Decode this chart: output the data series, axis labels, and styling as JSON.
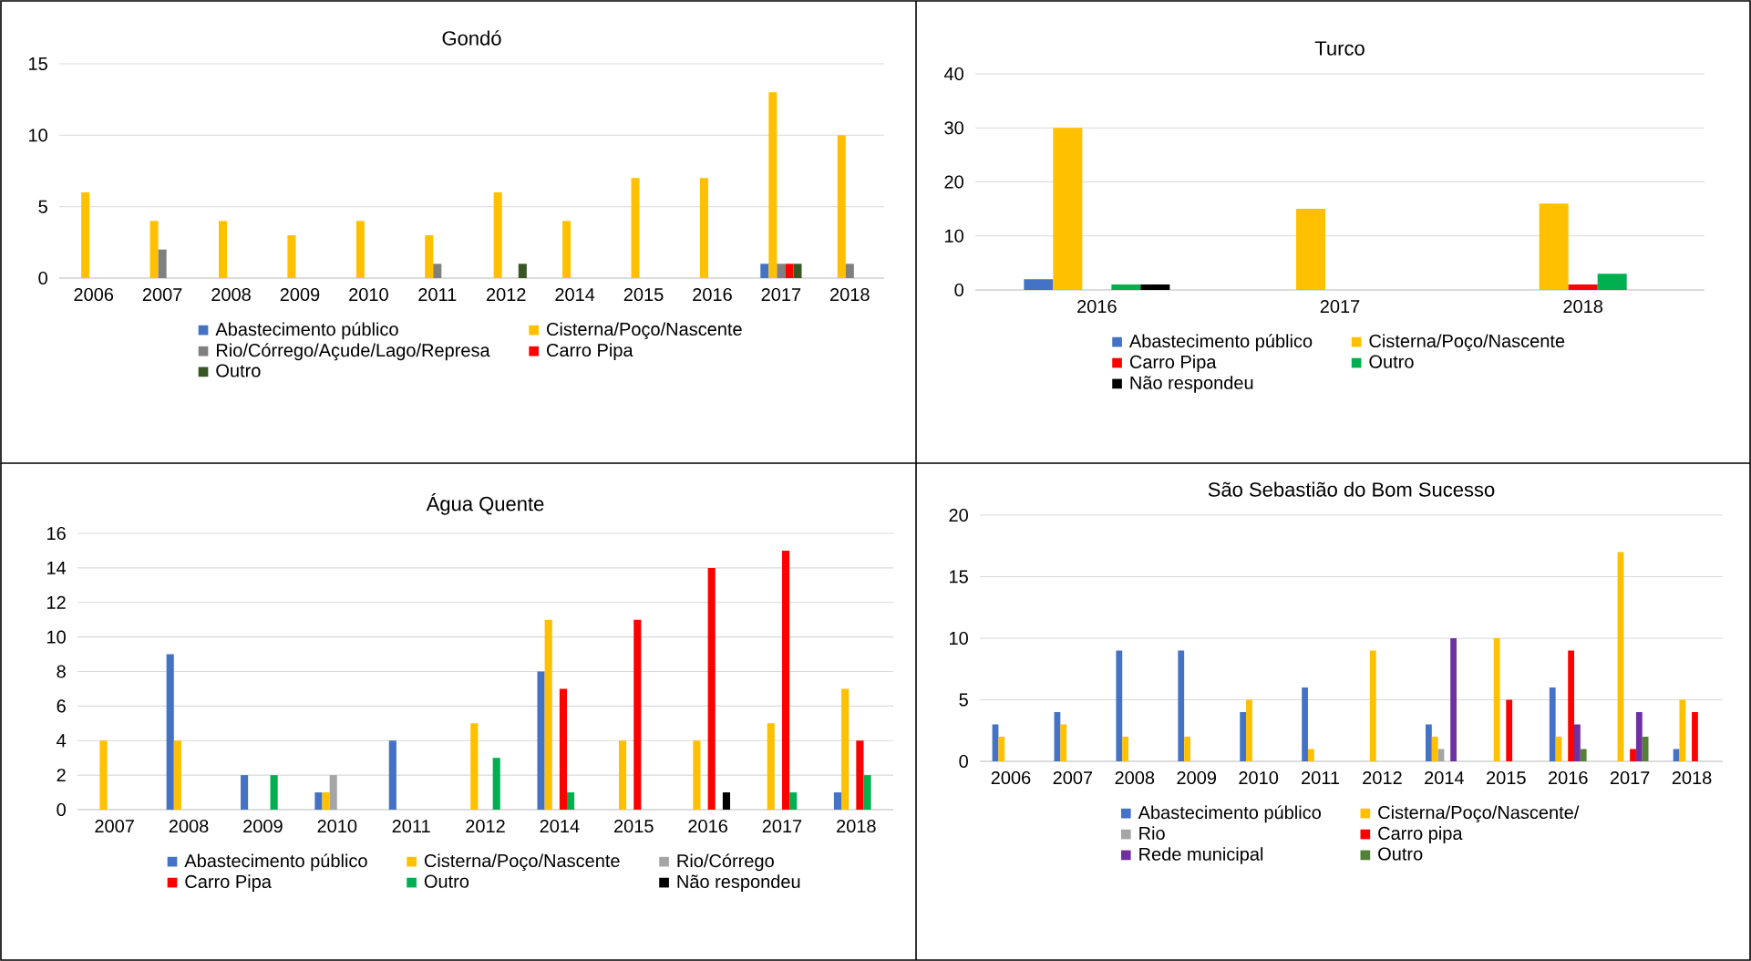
{
  "chart_data": [
    {
      "type": "bar",
      "title": "Gondó",
      "categories": [
        "2006",
        "2007",
        "2008",
        "2009",
        "2010",
        "2011",
        "2012",
        "2014",
        "2015",
        "2016",
        "2017",
        "2018"
      ],
      "ylim": [
        0,
        15
      ],
      "yticks": [
        0,
        5,
        10,
        15
      ],
      "grid": "y",
      "legend": "bottom",
      "series": [
        {
          "name": "Abastecimento público",
          "color": "#4472c4",
          "values": [
            null,
            null,
            null,
            null,
            null,
            null,
            null,
            null,
            null,
            null,
            1,
            null
          ]
        },
        {
          "name": "Cisterna/Poço/Nascente",
          "color": "#ffc000",
          "values": [
            6,
            4,
            4,
            3,
            4,
            3,
            6,
            4,
            7,
            7,
            13,
            10
          ]
        },
        {
          "name": "Rio/Córrego/Açude/Lago/Represa",
          "color": "#808080",
          "values": [
            null,
            2,
            null,
            null,
            null,
            1,
            null,
            null,
            null,
            null,
            1,
            1
          ]
        },
        {
          "name": "Carro Pipa",
          "color": "#ff0000",
          "values": [
            null,
            null,
            null,
            null,
            null,
            null,
            null,
            null,
            null,
            null,
            1,
            null
          ]
        },
        {
          "name": "Outro",
          "color": "#375623",
          "values": [
            null,
            null,
            null,
            null,
            null,
            null,
            1,
            null,
            null,
            null,
            1,
            null
          ]
        }
      ]
    },
    {
      "type": "bar",
      "title": "Turco",
      "categories": [
        "2016",
        "2017",
        "2018"
      ],
      "ylim": [
        0,
        40
      ],
      "yticks": [
        0,
        10,
        20,
        30,
        40
      ],
      "grid": "y",
      "legend": "bottom",
      "series": [
        {
          "name": "Abastecimento público",
          "color": "#4472c4",
          "values": [
            2,
            null,
            null
          ]
        },
        {
          "name": "Cisterna/Poço/Nascente",
          "color": "#ffc000",
          "values": [
            30,
            15,
            16
          ]
        },
        {
          "name": "Carro Pipa",
          "color": "#ff0000",
          "values": [
            null,
            null,
            1
          ]
        },
        {
          "name": "Outro",
          "color": "#00b050",
          "values": [
            1,
            null,
            3
          ]
        },
        {
          "name": "Não respondeu",
          "color": "#000000",
          "values": [
            1,
            null,
            null
          ]
        }
      ]
    },
    {
      "type": "bar",
      "title": "Água Quente",
      "categories": [
        "2007",
        "2008",
        "2009",
        "2010",
        "2011",
        "2012",
        "2014",
        "2015",
        "2016",
        "2017",
        "2018"
      ],
      "ylim": [
        0,
        16
      ],
      "yticks": [
        0,
        2,
        4,
        6,
        8,
        10,
        12,
        14,
        16
      ],
      "grid": "y",
      "legend": "bottom",
      "series": [
        {
          "name": "Abastecimento público",
          "color": "#4472c4",
          "values": [
            null,
            9,
            2,
            1,
            4,
            null,
            8,
            null,
            null,
            null,
            1
          ]
        },
        {
          "name": "Cisterna/Poço/Nascente",
          "color": "#ffc000",
          "values": [
            4,
            4,
            null,
            1,
            null,
            5,
            11,
            4,
            4,
            5,
            7
          ]
        },
        {
          "name": "Rio/Córrego",
          "color": "#a5a5a5",
          "values": [
            null,
            null,
            null,
            2,
            null,
            null,
            null,
            null,
            null,
            null,
            null
          ]
        },
        {
          "name": "Carro Pipa",
          "color": "#ff0000",
          "values": [
            null,
            null,
            null,
            null,
            null,
            null,
            7,
            11,
            14,
            15,
            4
          ]
        },
        {
          "name": "Outro",
          "color": "#00b050",
          "values": [
            null,
            null,
            2,
            null,
            null,
            3,
            1,
            null,
            null,
            1,
            2
          ]
        },
        {
          "name": "Não respondeu",
          "color": "#000000",
          "values": [
            null,
            null,
            null,
            null,
            null,
            null,
            null,
            null,
            1,
            null,
            null
          ]
        }
      ]
    },
    {
      "type": "bar",
      "title": "São Sebastião do Bom Sucesso",
      "categories": [
        "2006",
        "2007",
        "2008",
        "2009",
        "2010",
        "2011",
        "2012",
        "2014",
        "2015",
        "2016",
        "2017",
        "2018"
      ],
      "ylim": [
        0,
        20
      ],
      "yticks": [
        0,
        5,
        10,
        15,
        20
      ],
      "grid": "y",
      "legend": "bottom",
      "series": [
        {
          "name": "Abastecimento público",
          "color": "#4472c4",
          "values": [
            3,
            4,
            9,
            9,
            4,
            6,
            null,
            3,
            null,
            6,
            null,
            1
          ]
        },
        {
          "name": "Cisterna/Poço/Nascente/",
          "color": "#ffc000",
          "values": [
            2,
            3,
            2,
            2,
            5,
            1,
            9,
            2,
            10,
            2,
            17,
            5
          ]
        },
        {
          "name": "Rio",
          "color": "#a5a5a5",
          "values": [
            null,
            null,
            null,
            null,
            null,
            null,
            null,
            1,
            null,
            null,
            null,
            null
          ]
        },
        {
          "name": "Carro pipa",
          "color": "#ff0000",
          "values": [
            null,
            null,
            null,
            null,
            null,
            null,
            null,
            null,
            5,
            9,
            1,
            4
          ]
        },
        {
          "name": "Rede municipal",
          "color": "#7030a0",
          "values": [
            null,
            null,
            null,
            null,
            null,
            null,
            null,
            10,
            null,
            3,
            4,
            null
          ]
        },
        {
          "name": "Outro",
          "color": "#548235",
          "values": [
            null,
            null,
            null,
            null,
            null,
            null,
            null,
            null,
            null,
            1,
            2,
            null
          ]
        }
      ]
    }
  ]
}
